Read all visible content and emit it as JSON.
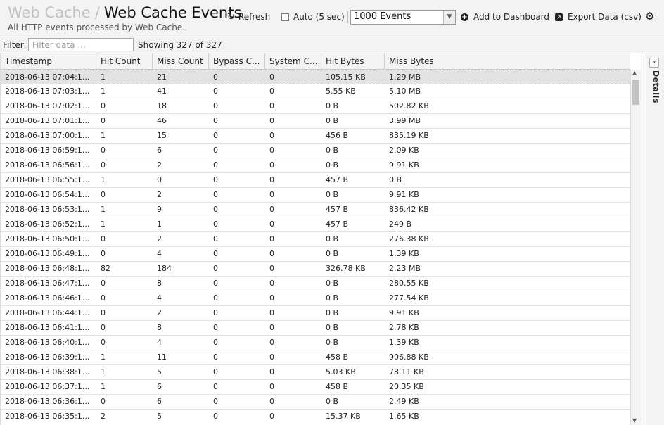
{
  "header": {
    "breadcrumb_parent": "Web Cache",
    "breadcrumb_sep": "/",
    "title": "Web Cache Events",
    "subtitle": "All HTTP events processed by Web Cache."
  },
  "toolbar": {
    "refresh_label": "Refresh",
    "refresh_icon": "refresh-icon",
    "auto_label": "Auto (5 sec)",
    "auto_checked": false,
    "events_select_value": "1000 Events",
    "add_dashboard_label": "Add to Dashboard",
    "export_label": "Export Data (csv)",
    "settings_icon": "gear-icon"
  },
  "filter": {
    "label": "Filter:",
    "placeholder": "Filter data ...",
    "showing": "Showing 327 of 327"
  },
  "details_panel": {
    "label": "Details",
    "collapse_symbol": "«"
  },
  "table": {
    "columns": [
      "Timestamp",
      "Hit Count",
      "Miss Count",
      "Bypass C...",
      "System C...",
      "Hit Bytes",
      "Miss Bytes"
    ],
    "rows": [
      [
        "2018-06-13 07:04:1...",
        "1",
        "21",
        "0",
        "0",
        "105.15 KB",
        "1.29 MB"
      ],
      [
        "2018-06-13 07:03:1...",
        "1",
        "41",
        "0",
        "0",
        "5.55 KB",
        "5.10 MB"
      ],
      [
        "2018-06-13 07:02:1...",
        "0",
        "18",
        "0",
        "0",
        "0 B",
        "502.82 KB"
      ],
      [
        "2018-06-13 07:01:1...",
        "0",
        "46",
        "0",
        "0",
        "0 B",
        "3.99 MB"
      ],
      [
        "2018-06-13 07:00:1...",
        "1",
        "15",
        "0",
        "0",
        "456 B",
        "835.19 KB"
      ],
      [
        "2018-06-13 06:59:1...",
        "0",
        "6",
        "0",
        "0",
        "0 B",
        "2.09 KB"
      ],
      [
        "2018-06-13 06:56:1...",
        "0",
        "2",
        "0",
        "0",
        "0 B",
        "9.91 KB"
      ],
      [
        "2018-06-13 06:55:1...",
        "1",
        "0",
        "0",
        "0",
        "457 B",
        "0 B"
      ],
      [
        "2018-06-13 06:54:1...",
        "0",
        "2",
        "0",
        "0",
        "0 B",
        "9.91 KB"
      ],
      [
        "2018-06-13 06:53:1...",
        "1",
        "9",
        "0",
        "0",
        "457 B",
        "836.42 KB"
      ],
      [
        "2018-06-13 06:52:1...",
        "1",
        "1",
        "0",
        "0",
        "457 B",
        "249 B"
      ],
      [
        "2018-06-13 06:50:1...",
        "0",
        "2",
        "0",
        "0",
        "0 B",
        "276.38 KB"
      ],
      [
        "2018-06-13 06:49:1...",
        "0",
        "4",
        "0",
        "0",
        "0 B",
        "1.39 KB"
      ],
      [
        "2018-06-13 06:48:1...",
        "82",
        "184",
        "0",
        "0",
        "326.78 KB",
        "2.23 MB"
      ],
      [
        "2018-06-13 06:47:1...",
        "0",
        "8",
        "0",
        "0",
        "0 B",
        "280.55 KB"
      ],
      [
        "2018-06-13 06:46:1...",
        "0",
        "4",
        "0",
        "0",
        "0 B",
        "277.54 KB"
      ],
      [
        "2018-06-13 06:44:1...",
        "0",
        "2",
        "0",
        "0",
        "0 B",
        "9.91 KB"
      ],
      [
        "2018-06-13 06:41:1...",
        "0",
        "8",
        "0",
        "0",
        "0 B",
        "2.78 KB"
      ],
      [
        "2018-06-13 06:40:1...",
        "0",
        "4",
        "0",
        "0",
        "0 B",
        "1.39 KB"
      ],
      [
        "2018-06-13 06:39:1...",
        "1",
        "11",
        "0",
        "0",
        "458 B",
        "906.88 KB"
      ],
      [
        "2018-06-13 06:38:1...",
        "1",
        "5",
        "0",
        "0",
        "5.03 KB",
        "78.11 KB"
      ],
      [
        "2018-06-13 06:37:1...",
        "1",
        "6",
        "0",
        "0",
        "458 B",
        "20.35 KB"
      ],
      [
        "2018-06-13 06:36:1...",
        "0",
        "6",
        "0",
        "0",
        "0 B",
        "2.49 KB"
      ],
      [
        "2018-06-13 06:35:1...",
        "2",
        "5",
        "0",
        "0",
        "15.37 KB",
        "1.65 KB"
      ]
    ],
    "selected_row": 0
  }
}
